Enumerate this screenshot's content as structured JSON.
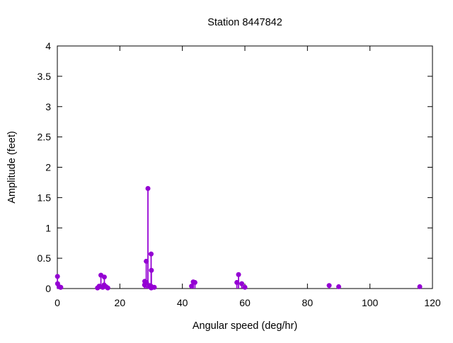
{
  "figure": {
    "background": "#ffffff",
    "text_color": "#000000",
    "border_color": "#000000"
  },
  "chart_data": {
    "type": "scatter",
    "style": "impulses-with-points",
    "title": "Station 8447842",
    "xlabel": "Angular speed (deg/hr)",
    "ylabel": "Amplitude (feet)",
    "xlim": [
      0,
      120
    ],
    "ylim": [
      0,
      4
    ],
    "xticks": [
      0,
      20,
      40,
      60,
      80,
      100,
      120
    ],
    "yticks": [
      0,
      0.5,
      1,
      1.5,
      2,
      2.5,
      3,
      3.5,
      4
    ],
    "grid": false,
    "legend": "none",
    "marker_color": "#9400d3",
    "points": [
      {
        "x": 0.041,
        "y": 0.2
      },
      {
        "x": 0.082,
        "y": 0.08
      },
      {
        "x": 0.544,
        "y": 0.03
      },
      {
        "x": 1.016,
        "y": 0.02
      },
      {
        "x": 1.098,
        "y": 0.02
      },
      {
        "x": 12.854,
        "y": 0.01
      },
      {
        "x": 13.399,
        "y": 0.04
      },
      {
        "x": 13.943,
        "y": 0.22
      },
      {
        "x": 14.497,
        "y": 0.02
      },
      {
        "x": 14.959,
        "y": 0.06
      },
      {
        "x": 15.041,
        "y": 0.19
      },
      {
        "x": 15.585,
        "y": 0.03
      },
      {
        "x": 16.139,
        "y": 0.01
      },
      {
        "x": 27.895,
        "y": 0.06
      },
      {
        "x": 27.968,
        "y": 0.12
      },
      {
        "x": 28.439,
        "y": 0.45
      },
      {
        "x": 28.512,
        "y": 0.1
      },
      {
        "x": 28.984,
        "y": 1.65
      },
      {
        "x": 29.456,
        "y": 0.03
      },
      {
        "x": 29.528,
        "y": 0.05
      },
      {
        "x": 29.959,
        "y": 0.04
      },
      {
        "x": 30.0,
        "y": 0.57
      },
      {
        "x": 30.041,
        "y": 0.01
      },
      {
        "x": 30.082,
        "y": 0.3
      },
      {
        "x": 31.016,
        "y": 0.02
      },
      {
        "x": 42.927,
        "y": 0.04
      },
      {
        "x": 43.476,
        "y": 0.11
      },
      {
        "x": 44.025,
        "y": 0.1
      },
      {
        "x": 57.424,
        "y": 0.1
      },
      {
        "x": 57.968,
        "y": 0.23
      },
      {
        "x": 58.984,
        "y": 0.08
      },
      {
        "x": 60.0,
        "y": 0.02
      },
      {
        "x": 86.952,
        "y": 0.05
      },
      {
        "x": 90.0,
        "y": 0.03
      },
      {
        "x": 115.936,
        "y": 0.03
      }
    ]
  }
}
